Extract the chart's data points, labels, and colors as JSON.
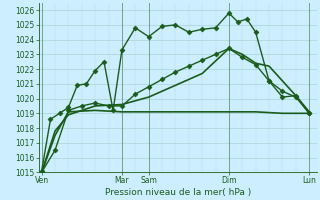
{
  "xlabel": "Pression niveau de la mer( hPa )",
  "background_color": "#cceeff",
  "grid_color_major": "#aad4d4",
  "grid_color_minor": "#bbdddd",
  "line_color": "#1a5c1a",
  "ylim": [
    1015,
    1026.5
  ],
  "yticks": [
    1015,
    1016,
    1017,
    1018,
    1019,
    1020,
    1021,
    1022,
    1023,
    1024,
    1025,
    1026
  ],
  "x_tick_positions": [
    0,
    3,
    4,
    7,
    10
  ],
  "x_tick_labels": [
    "Ven",
    "Mar",
    "Sam",
    "Dim",
    "Lun"
  ],
  "xlim": [
    -0.1,
    10.3
  ],
  "series": [
    {
      "x": [
        0,
        0.33,
        0.67,
        1.0,
        1.33,
        1.67,
        2.0,
        2.33,
        2.67,
        3.0,
        3.5,
        4.0,
        4.5,
        5.0,
        5.5,
        6.0,
        6.5,
        7.0,
        7.33,
        7.67,
        8.0,
        8.5,
        9.0,
        9.5,
        10.0
      ],
      "y": [
        1015.1,
        1018.6,
        1019.0,
        1019.4,
        1020.9,
        1021.0,
        1021.9,
        1022.5,
        1019.2,
        1023.3,
        1024.8,
        1024.2,
        1024.9,
        1025.0,
        1024.5,
        1024.7,
        1024.8,
        1025.8,
        1025.2,
        1025.4,
        1024.5,
        1021.2,
        1020.1,
        1020.2,
        1019.0
      ],
      "marker": "D",
      "markersize": 2.5,
      "linewidth": 1.0
    },
    {
      "x": [
        0,
        0.5,
        1.0,
        1.5,
        2.0,
        2.5,
        3.0,
        3.5,
        4.0,
        4.5,
        5.0,
        5.5,
        6.0,
        6.5,
        7.0,
        7.5,
        8.0,
        8.5,
        9.0,
        9.5,
        10.0
      ],
      "y": [
        1015.0,
        1016.5,
        1019.2,
        1019.5,
        1019.7,
        1019.5,
        1019.5,
        1020.3,
        1020.8,
        1021.3,
        1021.8,
        1022.2,
        1022.6,
        1023.0,
        1023.4,
        1022.8,
        1022.3,
        1021.2,
        1020.5,
        1020.1,
        1019.0
      ],
      "marker": "D",
      "markersize": 2.5,
      "linewidth": 1.0
    },
    {
      "x": [
        0,
        0.5,
        1.0,
        2.0,
        3.0,
        4.0,
        5.0,
        6.0,
        7.0,
        8.0,
        9.0,
        10.0
      ],
      "y": [
        1015.0,
        1017.5,
        1019.1,
        1019.2,
        1019.1,
        1019.1,
        1019.1,
        1019.1,
        1019.1,
        1019.1,
        1019.0,
        1019.0
      ],
      "marker": null,
      "markersize": 0,
      "linewidth": 1.2
    },
    {
      "x": [
        0,
        0.5,
        1.0,
        2.0,
        3.0,
        4.0,
        5.0,
        6.0,
        7.0,
        7.5,
        8.0,
        8.5,
        9.0,
        9.5,
        10.0
      ],
      "y": [
        1015.0,
        1017.8,
        1018.9,
        1019.5,
        1019.6,
        1020.1,
        1020.9,
        1021.7,
        1023.4,
        1023.0,
        1022.4,
        1022.2,
        1021.2,
        1020.2,
        1019.1
      ],
      "marker": null,
      "markersize": 0,
      "linewidth": 1.2
    }
  ]
}
